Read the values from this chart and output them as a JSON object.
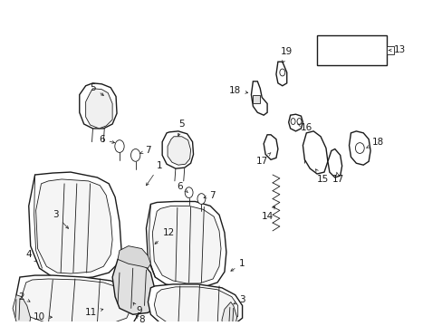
{
  "background_color": "#ffffff",
  "line_color": "#1a1a1a",
  "figsize": [
    4.89,
    3.6
  ],
  "dpi": 100,
  "label_fontsize": 7.5,
  "lw_main": 1.0,
  "lw_thin": 0.6
}
